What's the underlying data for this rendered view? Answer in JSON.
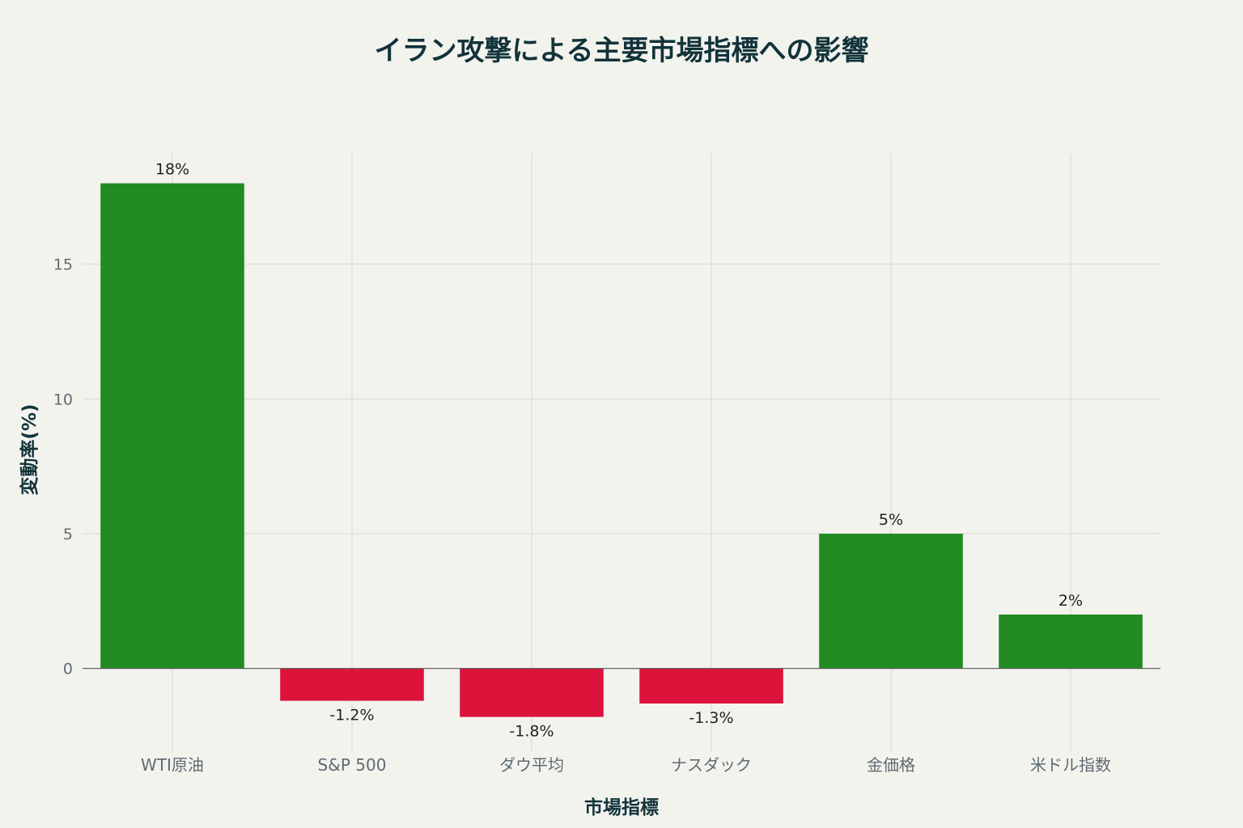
{
  "chart_data": {
    "type": "bar",
    "title": "イラン攻撃による主要市場指標への影響",
    "xlabel": "市場指標",
    "ylabel": "変動率(%)",
    "categories": [
      "WTI原油",
      "S&P 500",
      "ダウ平均",
      "ナスダック",
      "金価格",
      "米ドル指数"
    ],
    "values": [
      18,
      -1.2,
      -1.8,
      -1.3,
      5,
      2
    ],
    "value_labels": [
      "18%",
      "-1.2%",
      "-1.8%",
      "-1.3%",
      "5%",
      "2%"
    ],
    "ylim": [
      -3.1,
      19.1
    ],
    "yticks": [
      0,
      5,
      10,
      15
    ],
    "ytick_labels": [
      "0",
      "5",
      "10",
      "15"
    ],
    "grid": true,
    "legend": "none",
    "colors": {
      "positive": "#228b22",
      "negative": "#dc143c"
    }
  }
}
